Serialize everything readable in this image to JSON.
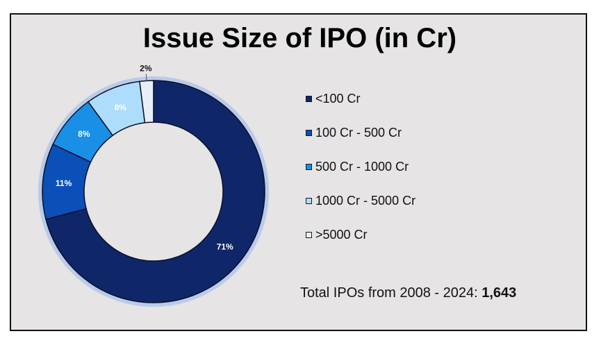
{
  "chart_data": {
    "type": "pie",
    "title": "Issue Size of IPO (in Cr)",
    "categories": [
      "<100 Cr",
      "100 Cr - 500 Cr",
      "500 Cr - 1000 Cr",
      "1000 Cr - 5000 Cr",
      ">5000 Cr"
    ],
    "values": [
      71,
      11,
      8,
      8,
      2
    ],
    "data_labels": [
      "71%",
      "11%",
      "8%",
      "8%",
      "2%"
    ],
    "colors": [
      "#0f2669",
      "#0b4fb8",
      "#1a8fe6",
      "#aedcfb",
      "#e8eef5"
    ],
    "legend_position": "right"
  },
  "footer": {
    "total_prefix": "Total IPOs from 2008 - 2024: ",
    "total_value": "1,643"
  }
}
